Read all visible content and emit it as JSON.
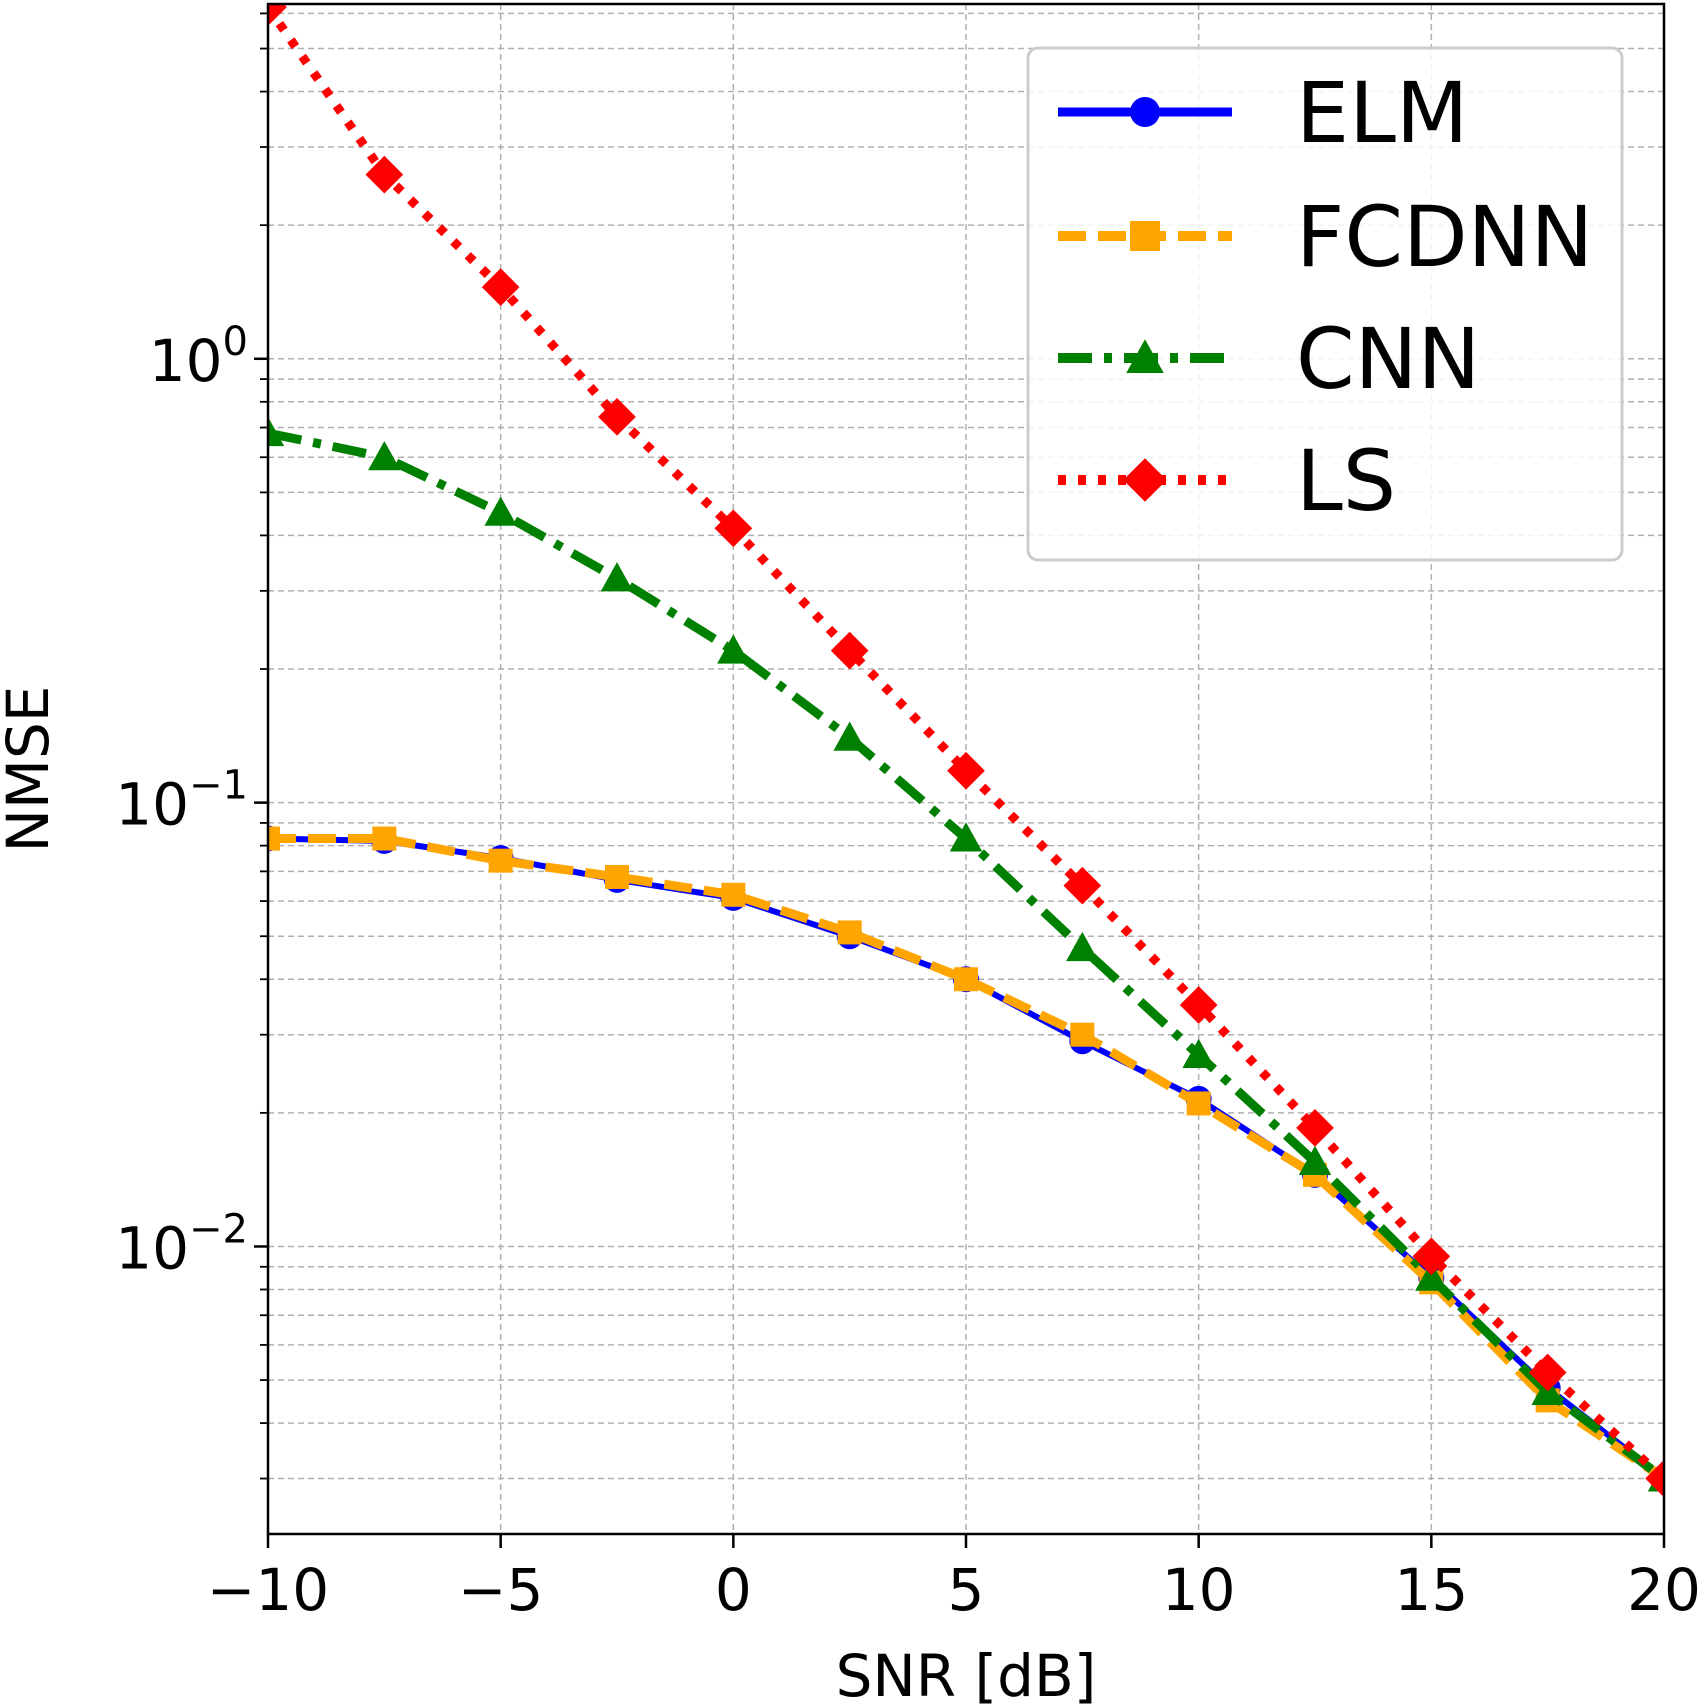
{
  "chart_data": {
    "type": "line",
    "title": "",
    "xlabel": "SNR [dB]",
    "ylabel": "NMSE",
    "yscale": "log",
    "xlim": [
      -10,
      20
    ],
    "ylim": [
      0.00225,
      6.3
    ],
    "grid": true,
    "legend_position": "top-right",
    "x_ticks": [
      -10,
      -5,
      0,
      5,
      10,
      15,
      20
    ],
    "x_tick_labels": [
      "−10",
      "−5",
      "0",
      "5",
      "10",
      "15",
      "20"
    ],
    "y_ticks": [
      0.01,
      0.1,
      1
    ],
    "y_tick_labels": [
      {
        "base": "10",
        "exp": "−2"
      },
      {
        "base": "10",
        "exp": "−1"
      },
      {
        "base": "10",
        "exp": "0"
      }
    ],
    "x": [
      -10,
      -7.5,
      -5,
      -2.5,
      0,
      2.5,
      5,
      7.5,
      10,
      12.5,
      15,
      17.5,
      20
    ],
    "series": [
      {
        "name": "ELM",
        "color": "#0000ff",
        "dash": "solid",
        "marker": "circle",
        "values": [
          0.083,
          0.082,
          0.075,
          0.067,
          0.061,
          0.05,
          0.04,
          0.029,
          0.0215,
          0.0145,
          0.0085,
          0.0048,
          0.003
        ]
      },
      {
        "name": "FCDNN",
        "color": "#ffa500",
        "dash": "dashed",
        "marker": "square",
        "values": [
          0.083,
          0.083,
          0.074,
          0.068,
          0.062,
          0.051,
          0.04,
          0.03,
          0.021,
          0.0145,
          0.0083,
          0.0045,
          0.003
        ]
      },
      {
        "name": "CNN",
        "color": "#008000",
        "dash": "dashdot",
        "marker": "triangle",
        "values": [
          0.68,
          0.6,
          0.45,
          0.32,
          0.22,
          0.14,
          0.083,
          0.047,
          0.027,
          0.0155,
          0.0085,
          0.0047,
          0.003
        ]
      },
      {
        "name": "LS",
        "color": "#ff0000",
        "dash": "dotted",
        "marker": "diamond",
        "values": [
          6.2,
          2.6,
          1.45,
          0.74,
          0.415,
          0.22,
          0.118,
          0.065,
          0.035,
          0.0185,
          0.0095,
          0.0052,
          0.003
        ]
      }
    ]
  }
}
